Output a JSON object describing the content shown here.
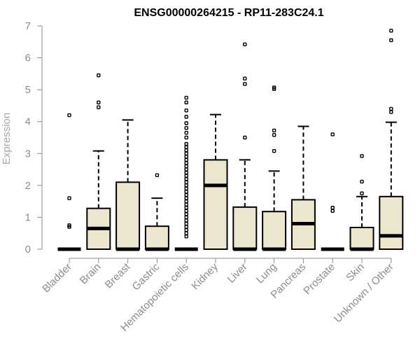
{
  "chart_data": {
    "type": "box",
    "title": "ENSG00000264215 - RP11-283C24.1",
    "ylabel": "Expression",
    "ylim": [
      0,
      7
    ],
    "yticks": [
      0,
      1,
      2,
      3,
      4,
      5,
      6,
      7
    ],
    "box_fill": "#ede6cf",
    "series": [
      {
        "category": "Bladder",
        "q1": 0,
        "median": 0,
        "q3": 0,
        "lower": 0,
        "upper": 0,
        "outliers": [
          0.7,
          0.75,
          1.6,
          4.2
        ]
      },
      {
        "category": "Brain",
        "q1": 0,
        "median": 0.65,
        "q3": 1.28,
        "lower": 0,
        "upper": 3.08,
        "outliers": [
          4.45,
          4.6,
          5.45
        ]
      },
      {
        "category": "Breast",
        "q1": 0,
        "median": 0,
        "q3": 2.1,
        "lower": 0,
        "upper": 4.05,
        "outliers": []
      },
      {
        "category": "Gastric",
        "q1": 0,
        "median": 0,
        "q3": 0.72,
        "lower": 0,
        "upper": 1.6,
        "outliers": [
          2.32
        ]
      },
      {
        "category": "Hematopoietic cells",
        "q1": 0,
        "median": 0,
        "q3": 0,
        "lower": 0,
        "upper": 0,
        "outliers": [
          0.4,
          0.5,
          0.6,
          0.7,
          0.8,
          0.9,
          1.0,
          1.1,
          1.2,
          1.3,
          1.4,
          1.5,
          1.6,
          1.7,
          1.8,
          1.9,
          2.0,
          2.1,
          2.2,
          2.3,
          2.4,
          2.5,
          2.6,
          2.7,
          2.8,
          2.9,
          3.0,
          3.1,
          3.2,
          3.3,
          3.5,
          3.65,
          3.8,
          3.95,
          4.15,
          4.35,
          4.6,
          4.75
        ]
      },
      {
        "category": "Kidney",
        "q1": 0,
        "median": 2.0,
        "q3": 2.8,
        "lower": 0,
        "upper": 4.22,
        "outliers": []
      },
      {
        "category": "Liver",
        "q1": 0,
        "median": 0,
        "q3": 1.32,
        "lower": 0,
        "upper": 2.8,
        "outliers": [
          3.5,
          5.18,
          5.35,
          6.42
        ]
      },
      {
        "category": "Lung",
        "q1": 0,
        "median": 0,
        "q3": 1.18,
        "lower": 0,
        "upper": 2.45,
        "outliers": [
          3.08,
          3.58,
          3.72,
          5.02,
          5.07
        ]
      },
      {
        "category": "Pancreas",
        "q1": 0,
        "median": 0.8,
        "q3": 1.55,
        "lower": 0,
        "upper": 3.85,
        "outliers": []
      },
      {
        "category": "Prostate",
        "q1": 0,
        "median": 0,
        "q3": 0,
        "lower": 0,
        "upper": 0,
        "outliers": [
          1.2,
          1.3,
          3.6
        ]
      },
      {
        "category": "Skin",
        "q1": 0,
        "median": 0,
        "q3": 0.68,
        "lower": 0,
        "upper": 1.65,
        "outliers": [
          1.75,
          2.12,
          2.92
        ]
      },
      {
        "category": "Unknown / Other",
        "q1": 0,
        "median": 0.42,
        "q3": 1.65,
        "lower": 0,
        "upper": 3.98,
        "outliers": [
          4.3,
          4.4,
          6.55,
          6.85
        ]
      }
    ]
  }
}
